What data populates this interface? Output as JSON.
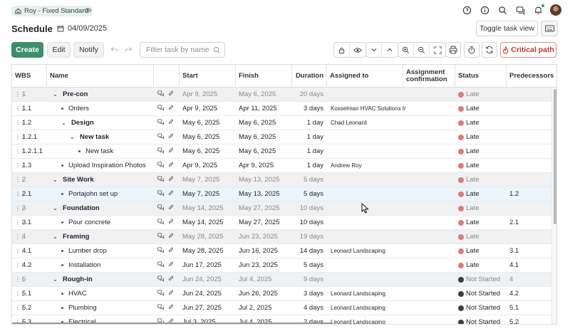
{
  "project": {
    "name": "Roy - Fixed Standard"
  },
  "header": {
    "title": "Schedule",
    "date": "04/09/2025",
    "toggle_label": "Toggle task view"
  },
  "toolbar": {
    "create": "Create",
    "edit": "Edit",
    "notify": "Notify",
    "filter_placeholder": "Filter task by name",
    "critical_path": "Critical path"
  },
  "columns": [
    "WBS",
    "Name",
    "Start",
    "Finish",
    "Duration",
    "Assigned to",
    "Assignment confirmation",
    "Status",
    "Predecessors"
  ],
  "status_colors": {
    "Late": "#e07a7a",
    "Not Started": "#3a3d42"
  },
  "accent": "#3d8f6a",
  "rows": [
    {
      "wbs": "1",
      "name": "Pre-con",
      "level": 0,
      "summary": true,
      "start": "Apr 9, 2025",
      "finish": "May 6, 2025",
      "duration": "20 days",
      "assigned": "",
      "status": "Late",
      "pred": ""
    },
    {
      "wbs": "1.1",
      "name": "Orders",
      "level": 1,
      "summary": false,
      "start": "Apr 9, 2025",
      "finish": "Apr 11, 2025",
      "duration": "3 days",
      "assigned": "Kosselman HVAC Solutions Inc",
      "status": "Late",
      "pred": ""
    },
    {
      "wbs": "1.2",
      "name": "Design",
      "level": 1,
      "summary": true,
      "start": "May 6, 2025",
      "finish": "May 6, 2025",
      "duration": "1 day",
      "assigned": "Chad Leonard",
      "status": "Late",
      "pred": ""
    },
    {
      "wbs": "1.2.1",
      "name": "New task",
      "level": 2,
      "summary": true,
      "start": "May 6, 2025",
      "finish": "May 6, 2025",
      "duration": "1 day",
      "assigned": "",
      "status": "Late",
      "pred": ""
    },
    {
      "wbs": "1.2.1.1",
      "name": "New task",
      "level": 3,
      "summary": false,
      "start": "May 6, 2025",
      "finish": "May 6, 2025",
      "duration": "1 day",
      "assigned": "",
      "status": "Late",
      "pred": ""
    },
    {
      "wbs": "1.3",
      "name": "Upload Inspiration Photos",
      "level": 1,
      "summary": false,
      "start": "Apr 9, 2025",
      "finish": "Apr 9, 2025",
      "duration": "1 day",
      "assigned": "Andrew Roy",
      "status": "Late",
      "pred": ""
    },
    {
      "wbs": "2",
      "name": "Site Work",
      "level": 0,
      "summary": true,
      "start": "May 7, 2025",
      "finish": "May 13, 2025",
      "duration": "5 days",
      "assigned": "",
      "status": "Late",
      "pred": ""
    },
    {
      "wbs": "2.1",
      "name": "Portajohn set up",
      "level": 1,
      "summary": false,
      "highlight": true,
      "start": "May 7, 2025",
      "finish": "May 13, 2025",
      "duration": "5 days",
      "assigned": "",
      "status": "Late",
      "pred": "1.2"
    },
    {
      "wbs": "3",
      "name": "Foundation",
      "level": 0,
      "summary": true,
      "start": "May 14, 2025",
      "finish": "May 27, 2025",
      "duration": "10 days",
      "assigned": "",
      "status": "Late",
      "pred": ""
    },
    {
      "wbs": "3.1",
      "name": "Pour concrete",
      "level": 1,
      "summary": false,
      "start": "May 14, 2025",
      "finish": "May 27, 2025",
      "duration": "10 days",
      "assigned": "",
      "status": "Late",
      "pred": "2.1"
    },
    {
      "wbs": "4",
      "name": "Framing",
      "level": 0,
      "summary": true,
      "start": "May 28, 2025",
      "finish": "Jun 23, 2025",
      "duration": "19 days",
      "assigned": "",
      "status": "Late",
      "pred": ""
    },
    {
      "wbs": "4.1",
      "name": "Lumber drop",
      "level": 1,
      "summary": false,
      "start": "May 28, 2025",
      "finish": "Jun 16, 2025",
      "duration": "14 days",
      "assigned": "Leonard Landscaping",
      "status": "Late",
      "pred": "3.1"
    },
    {
      "wbs": "4.2",
      "name": "Installation",
      "level": 1,
      "summary": false,
      "start": "Jun 17, 2025",
      "finish": "Jun 23, 2025",
      "duration": "5 days",
      "assigned": "",
      "status": "Late",
      "pred": "4.1"
    },
    {
      "wbs": "5",
      "name": "Rough-in",
      "level": 0,
      "summary": true,
      "start": "Jun 24, 2025",
      "finish": "Jul 4, 2025",
      "duration": "9 days",
      "assigned": "",
      "status": "Not Started",
      "pred": "4"
    },
    {
      "wbs": "5.1",
      "name": "HVAC",
      "level": 1,
      "summary": false,
      "start": "Jun 24, 2025",
      "finish": "Jun 26, 2025",
      "duration": "3 days",
      "assigned": "Leonard Landscaping",
      "status": "Not Started",
      "pred": "4.2"
    },
    {
      "wbs": "5.2",
      "name": "Plumbing",
      "level": 1,
      "summary": false,
      "start": "Jun 27, 2025",
      "finish": "Jul 2, 2025",
      "duration": "4 days",
      "assigned": "Leonard Landscaping",
      "status": "Not Started",
      "pred": "5.1"
    },
    {
      "wbs": "5.3",
      "name": "Electrical",
      "level": 1,
      "summary": false,
      "start": "Jul 3, 2025",
      "finish": "Jul 4, 2025",
      "duration": "2 days",
      "assigned": "Leonard Landscaping",
      "status": "Not Started",
      "pred": "5.2"
    }
  ]
}
